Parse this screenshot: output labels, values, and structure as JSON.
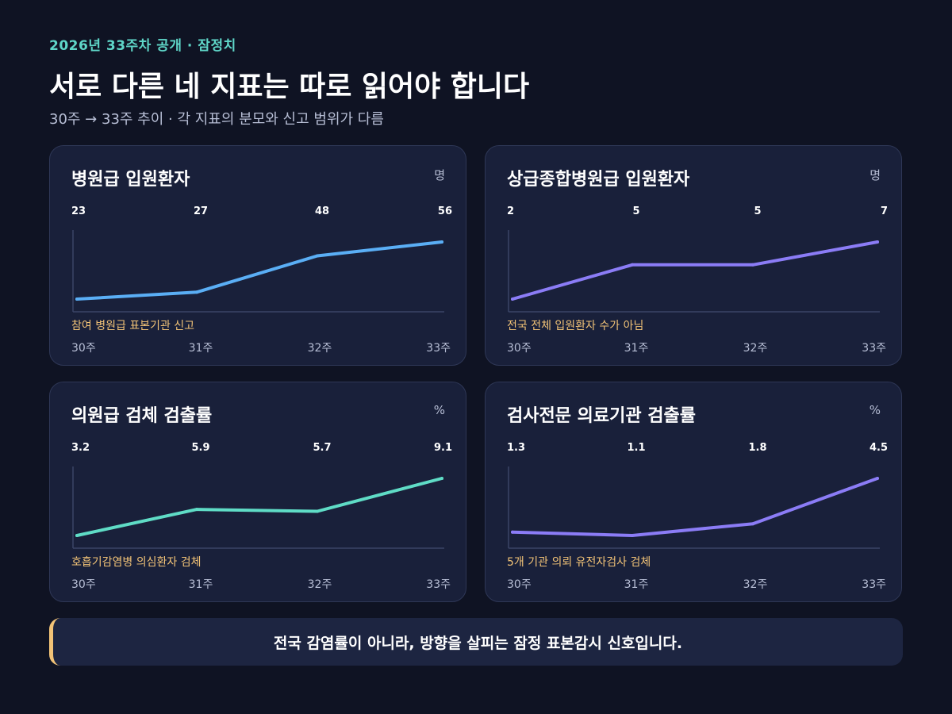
{
  "header": {
    "eyebrow": "2026년 33주차 공개 · 잠정치",
    "title": "서로 다른 네 지표는 따로 읽어야 합니다",
    "subtitle": "30주 → 33주 추이 · 각 지표의 분모와 신고 범위가 다름"
  },
  "chart_data": [
    {
      "type": "line",
      "title": "병원급 입원환자",
      "unit": "명",
      "categories": [
        "30주",
        "31주",
        "32주",
        "33주"
      ],
      "values": [
        23,
        27,
        48,
        56
      ],
      "value_labels": [
        "23",
        "27",
        "48",
        "56"
      ],
      "note": "참여 병원급 표본기관 신고",
      "color": "#5aaef5"
    },
    {
      "type": "line",
      "title": "상급종합병원급 입원환자",
      "unit": "명",
      "categories": [
        "30주",
        "31주",
        "32주",
        "33주"
      ],
      "values": [
        2,
        5,
        5,
        7
      ],
      "value_labels": [
        "2",
        "5",
        "5",
        "7"
      ],
      "note": "전국 전체 입원환자 수가 아님",
      "color": "#8b7cf6"
    },
    {
      "type": "line",
      "title": "의원급 검체 검출률",
      "unit": "%",
      "categories": [
        "30주",
        "31주",
        "32주",
        "33주"
      ],
      "values": [
        3.2,
        5.9,
        5.7,
        9.1
      ],
      "value_labels": [
        "3.2",
        "5.9",
        "5.7",
        "9.1"
      ],
      "note": "호흡기감염병 의심환자 검체",
      "color": "#5fdcc6"
    },
    {
      "type": "line",
      "title": "검사전문 의료기관 검출률",
      "unit": "%",
      "categories": [
        "30주",
        "31주",
        "32주",
        "33주"
      ],
      "values": [
        1.3,
        1.1,
        1.8,
        4.5
      ],
      "value_labels": [
        "1.3",
        "1.1",
        "1.8",
        "4.5"
      ],
      "note": "5개 기관 의뢰 유전자검사 검체",
      "color": "#8b7cf6"
    }
  ],
  "footer": {
    "message": "전국 감염률이 아니라, 방향을 살피는 잠정 표본감시 신호입니다."
  }
}
